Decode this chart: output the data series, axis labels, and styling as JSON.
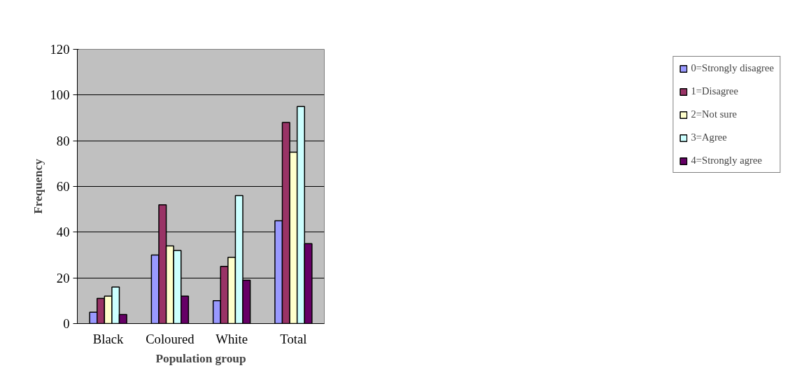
{
  "chart_data": {
    "type": "bar",
    "xlabel": "Population group",
    "ylabel": "Frequency",
    "categories": [
      "Black",
      "Coloured",
      "White",
      "Total"
    ],
    "series": [
      {
        "name": "0=Strongly disagree",
        "color": "#9999ff",
        "values": [
          5,
          30,
          10,
          45
        ]
      },
      {
        "name": "1=Disagree",
        "color": "#993366",
        "values": [
          11,
          52,
          25,
          88
        ]
      },
      {
        "name": "2=Not sure",
        "color": "#ffffcc",
        "values": [
          12,
          34,
          29,
          75
        ]
      },
      {
        "name": "3=Agree",
        "color": "#ccffff",
        "values": [
          16,
          32,
          56,
          95
        ]
      },
      {
        "name": "4=Strongly agree",
        "color": "#660066",
        "values": [
          4,
          12,
          19,
          35
        ]
      }
    ],
    "ylim": [
      0,
      120
    ],
    "yticks": [
      0,
      20,
      40,
      60,
      80,
      100,
      120
    ],
    "grid": "y",
    "legend": "right"
  }
}
